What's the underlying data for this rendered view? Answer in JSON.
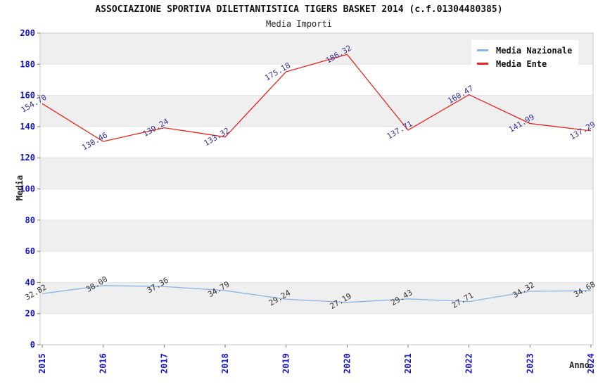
{
  "chart_data": {
    "type": "line",
    "title": "ASSOCIAZIONE SPORTIVA DILETTANTISTICA TIGERS BASKET 2014 (c.f.01304480385)",
    "subtitle": "Media Importi",
    "xlabel": "Anno",
    "ylabel": "Media",
    "ylim": [
      0,
      200
    ],
    "ytick_step": 20,
    "grid": "horizontal-bands-alternating",
    "legend_position": "top-right",
    "categories": [
      "2015",
      "2016",
      "2017",
      "2018",
      "2019",
      "2020",
      "2021",
      "2022",
      "2023",
      "2024"
    ],
    "series": [
      {
        "name": "Media Nazionale",
        "color": "#86b5e5",
        "label_color": "#333333",
        "values": [
          32.82,
          38.0,
          37.36,
          34.79,
          29.24,
          27.19,
          29.43,
          27.71,
          34.32,
          34.68
        ]
      },
      {
        "name": "Media Ente",
        "color": "#e8251c",
        "label_color": "#333399",
        "values": [
          154.7,
          130.46,
          139.24,
          133.32,
          175.18,
          186.32,
          137.71,
          160.47,
          141.99,
          137.29
        ]
      }
    ],
    "colors": {
      "tick_label": "#1414cc",
      "band": "#efefef",
      "plot_border": "#c9c9c9",
      "gridline": "#e3e3e3",
      "tick_mark": "#777777"
    }
  }
}
